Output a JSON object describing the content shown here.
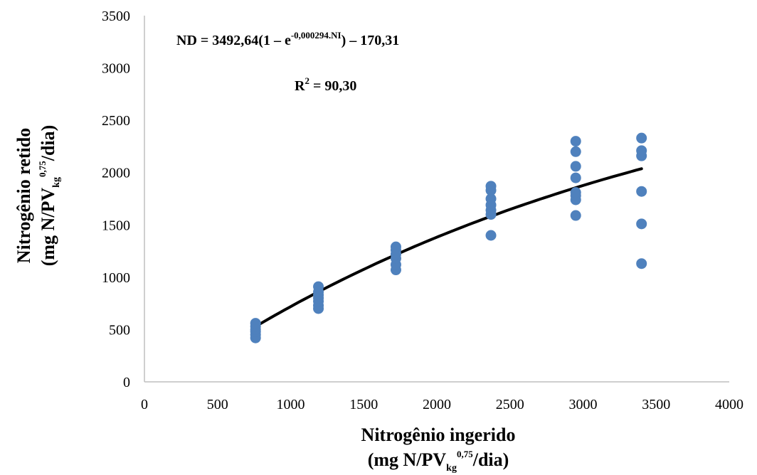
{
  "chart_data": {
    "type": "scatter",
    "xlim": [
      0,
      4000
    ],
    "ylim": [
      0,
      3500
    ],
    "x_ticks": [
      "0",
      "500",
      "1000",
      "1500",
      "2000",
      "2500",
      "3000",
      "3500",
      "4000"
    ],
    "y_ticks": [
      "0",
      "500",
      "1000",
      "1500",
      "2000",
      "2500",
      "3000",
      "3500"
    ],
    "grid": false,
    "xlabel": {
      "line1": "Nitrogênio ingerido",
      "line2_prefix": "(mg N/PV",
      "line2_sub": "kg",
      "line2_sup": "0,75",
      "line2_suffix": "/dia)"
    },
    "ylabel": {
      "line1": "Nitrogênio retido",
      "line2_prefix": "(mg N/PV",
      "line2_sub": "kg",
      "line2_sup": "0,75",
      "line2_suffix": "/dia)"
    },
    "equation": {
      "prefix": "ND = 3492,64(1 – e",
      "exponent": "-0,000294.NI",
      "suffix": ") – 170,31"
    },
    "r2": {
      "prefix": "R",
      "sup": "2",
      "suffix": " = 90,30"
    },
    "marker_color": "#4f81bd",
    "line_color": "#000000",
    "points": [
      {
        "x": 760,
        "y": 420
      },
      {
        "x": 760,
        "y": 450
      },
      {
        "x": 760,
        "y": 480
      },
      {
        "x": 760,
        "y": 500
      },
      {
        "x": 760,
        "y": 530
      },
      {
        "x": 760,
        "y": 560
      },
      {
        "x": 1190,
        "y": 700
      },
      {
        "x": 1190,
        "y": 730
      },
      {
        "x": 1190,
        "y": 770
      },
      {
        "x": 1190,
        "y": 800
      },
      {
        "x": 1190,
        "y": 830
      },
      {
        "x": 1190,
        "y": 860
      },
      {
        "x": 1190,
        "y": 910
      },
      {
        "x": 1720,
        "y": 1070
      },
      {
        "x": 1720,
        "y": 1120
      },
      {
        "x": 1720,
        "y": 1180
      },
      {
        "x": 1720,
        "y": 1220
      },
      {
        "x": 1720,
        "y": 1260
      },
      {
        "x": 1720,
        "y": 1290
      },
      {
        "x": 2370,
        "y": 1400
      },
      {
        "x": 2370,
        "y": 1600
      },
      {
        "x": 2370,
        "y": 1640
      },
      {
        "x": 2370,
        "y": 1690
      },
      {
        "x": 2370,
        "y": 1750
      },
      {
        "x": 2370,
        "y": 1830
      },
      {
        "x": 2370,
        "y": 1870
      },
      {
        "x": 2950,
        "y": 1590
      },
      {
        "x": 2950,
        "y": 1740
      },
      {
        "x": 2950,
        "y": 1780
      },
      {
        "x": 2950,
        "y": 1810
      },
      {
        "x": 2950,
        "y": 1950
      },
      {
        "x": 2950,
        "y": 2060
      },
      {
        "x": 2950,
        "y": 2200
      },
      {
        "x": 2950,
        "y": 2300
      },
      {
        "x": 3400,
        "y": 1130
      },
      {
        "x": 3400,
        "y": 1510
      },
      {
        "x": 3400,
        "y": 1820
      },
      {
        "x": 3400,
        "y": 2160
      },
      {
        "x": 3400,
        "y": 2210
      },
      {
        "x": 3400,
        "y": 2330
      }
    ],
    "fit_curve": {
      "model": "ND = 3492.64*(1 - exp(-0.000294*NI)) - 170.31",
      "a": 3492.64,
      "b": 0.000294,
      "c": -170.31,
      "x_start": 760,
      "x_end": 3400
    }
  }
}
